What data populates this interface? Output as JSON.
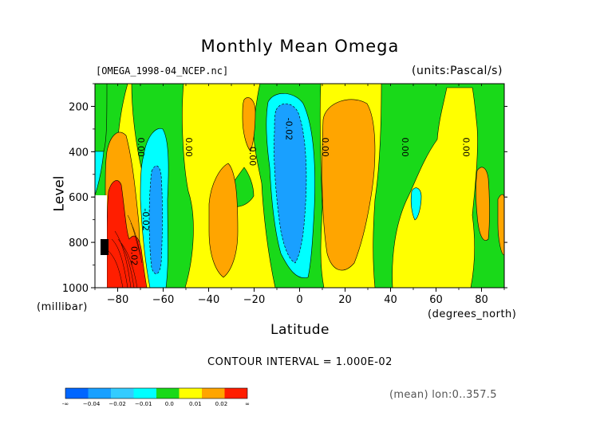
{
  "chart_data": {
    "type": "contour",
    "title": "Monthly Mean Omega",
    "source_file": "[OMEGA_1998-04_NCEP.nc]",
    "units": "(units:Pascal/s)",
    "xlabel": "Latitude",
    "xunit": "(degrees_north)",
    "ylabel": "Level",
    "yunit": "(millibar)",
    "xlim": [
      -90,
      90
    ],
    "ylim": [
      1000,
      100
    ],
    "x_ticks": [
      "-80",
      "-60",
      "-40",
      "-20",
      "0",
      "20",
      "40",
      "60",
      "80"
    ],
    "y_ticks": [
      "200",
      "400",
      "600",
      "800",
      "1000"
    ],
    "contour_labels": [
      "0.00",
      "0.00",
      "-0.02",
      "0.00",
      "0.00",
      "0.00",
      "-0.02",
      "0.02",
      "0.00"
    ],
    "footer": "CONTOUR INTERVAL = 1.000E-02",
    "colorbar_labels": [
      "-∞",
      "-0.04",
      "-0.02",
      "-0.01",
      "0.0",
      "0.01",
      "0.02",
      "∞"
    ],
    "colorbar_colors": [
      "#0066ff",
      "#19a0ff",
      "#33ccff",
      "#00ffff",
      "#19d919",
      "#ffff00",
      "#ffa500",
      "#ff1e00"
    ],
    "mean_info": "(mean) lon:0..357.5"
  }
}
